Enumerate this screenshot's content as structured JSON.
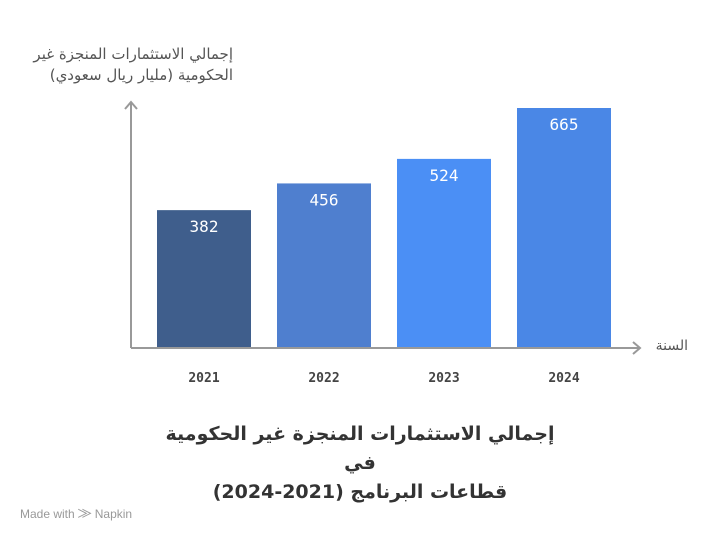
{
  "chart_data": {
    "type": "bar",
    "categories": [
      "2021",
      "2022",
      "2023",
      "2024"
    ],
    "values": [
      382,
      456,
      524,
      665
    ],
    "data_labels": [
      "382",
      "456",
      "524",
      "665"
    ],
    "colors": [
      "#3f5e8c",
      "#4f7fcf",
      "#4b8ff5",
      "#4a87e6"
    ],
    "ylabel": "إجمالي الاستثمارات المنجزة غير الحكومية (مليار ريال سعودي)",
    "ylabel_line1": "إجمالي الاستثمارات المنجزة غير",
    "ylabel_line2": "الحكومية  (مليار ريال سعودي)",
    "xlabel": "السنة",
    "title_line1": "إجمالي الاستثمارات المنجزة غير الحكومية في",
    "title_line2": "قطاعات البرنامج  (2021-2024)",
    "grid": false,
    "legend": "none",
    "axis_color": "#999999"
  },
  "footer": {
    "made_with": "Made with",
    "brand": "Napkin"
  }
}
